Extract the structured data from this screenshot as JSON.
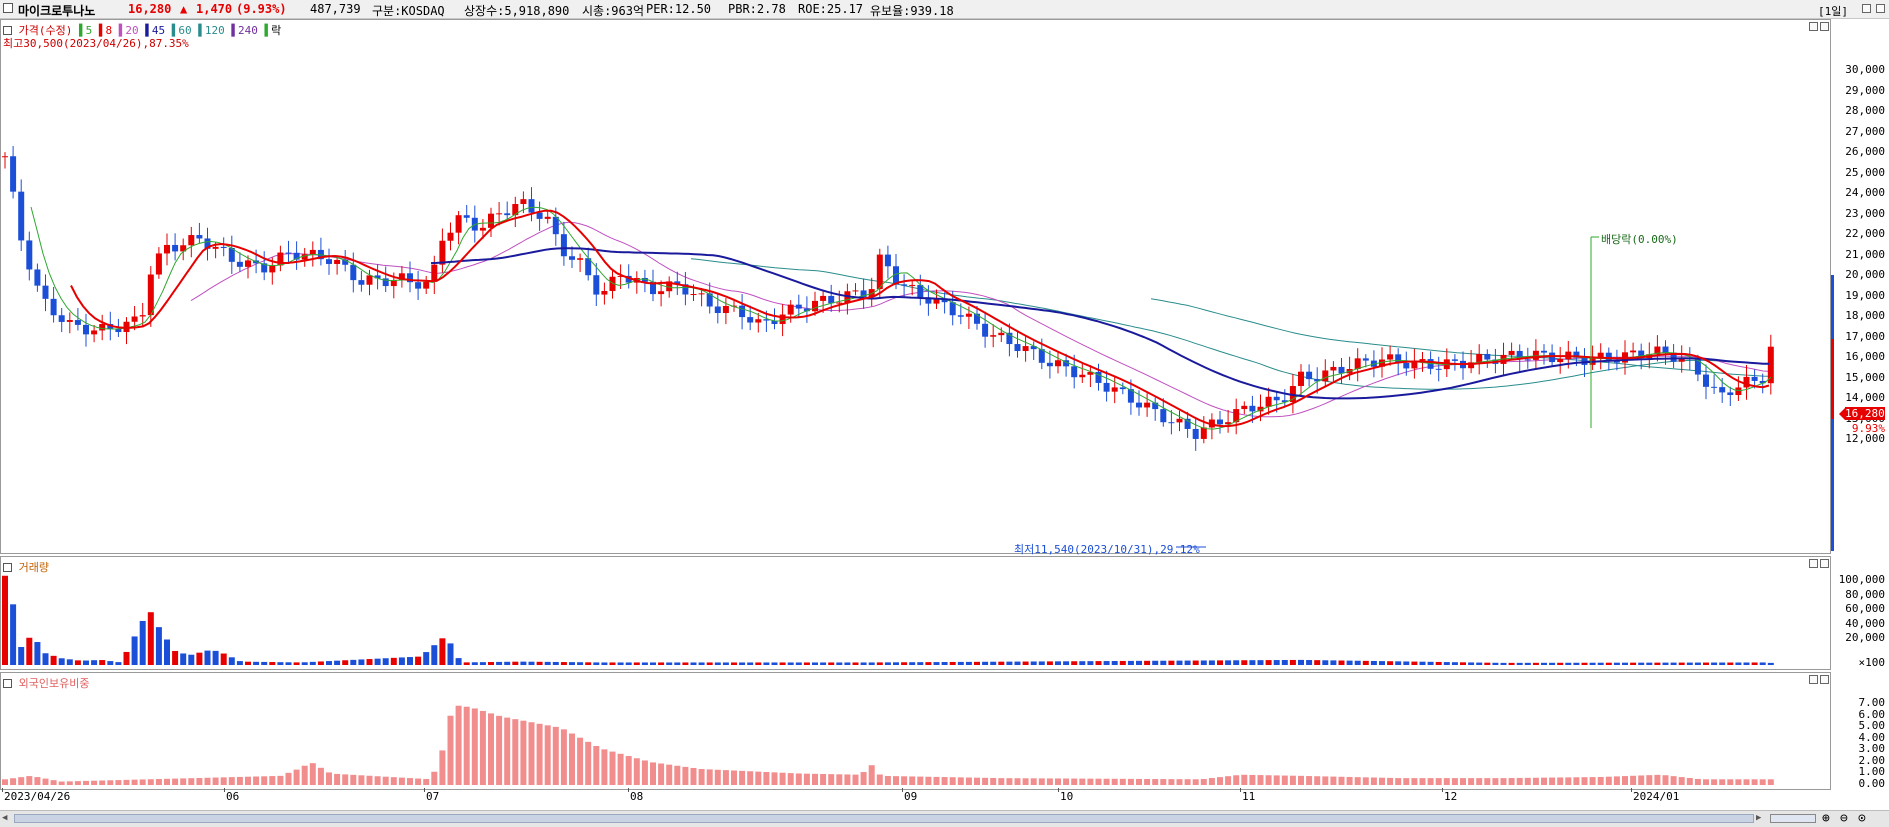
{
  "header": {
    "name": "마이크로투나노",
    "price": "16,280",
    "arrow": "▲",
    "change": "1,470",
    "change_pct": "(9.93%)",
    "volume": "487,739",
    "market": "구분:KOSDAQ",
    "shares": "상장수:5,918,890",
    "mktcap": "시총:963억",
    "per": "PER:12.50",
    "pbr": "PBR:2.78",
    "roe": "ROE:25.17",
    "float": "유보율:939.18",
    "period": "[1일]",
    "colors": {
      "up": "#e60000",
      "down": "#1c4fd8",
      "ma5": "#2ea82e",
      "ma20": "#c050c0",
      "ma60": "#2a8c8c",
      "ma120": "#2a8c8c",
      "ma240": "#7030a0"
    }
  },
  "price_panel": {
    "legend": {
      "label": "가격(수정)",
      "ma": [
        "5",
        "8",
        "20",
        "45",
        "60",
        "120",
        "240"
      ],
      "suffix": "락"
    },
    "high_note": "최고30,500(2023/04/26),87.35%",
    "low_note": "최저11,540(2023/10/31),29.12%",
    "dividend_note": "배당락(0.00%)",
    "yaxis": [
      "30,000",
      "29,000",
      "28,000",
      "27,000",
      "26,000",
      "25,000",
      "24,000",
      "23,000",
      "22,000",
      "21,000",
      "20,000",
      "19,000",
      "18,000",
      "17,000",
      "16,000",
      "15,000",
      "14,000",
      "13,000",
      "12,000"
    ],
    "current_price": "16,280",
    "current_pct": "9.93%"
  },
  "volume_panel": {
    "legend": "거래량",
    "yaxis": [
      "100,000",
      "80,000",
      "60,000",
      "40,000",
      "20,000"
    ],
    "unit": "×100"
  },
  "foreign_panel": {
    "legend": "외국인보유비중",
    "yaxis": [
      "7.00",
      "6.00",
      "5.00",
      "4.00",
      "3.00",
      "2.00",
      "1.00",
      "0.00"
    ]
  },
  "xaxis": [
    "2023/04/26",
    "06",
    "07",
    "08",
    "09",
    "10",
    "11",
    "12",
    "2024/01"
  ],
  "icons": [
    "checkbox-icon",
    "minimize-icon",
    "maximize-icon",
    "zoom-in-icon",
    "zoom-out-icon",
    "zoom-reset-icon"
  ]
}
